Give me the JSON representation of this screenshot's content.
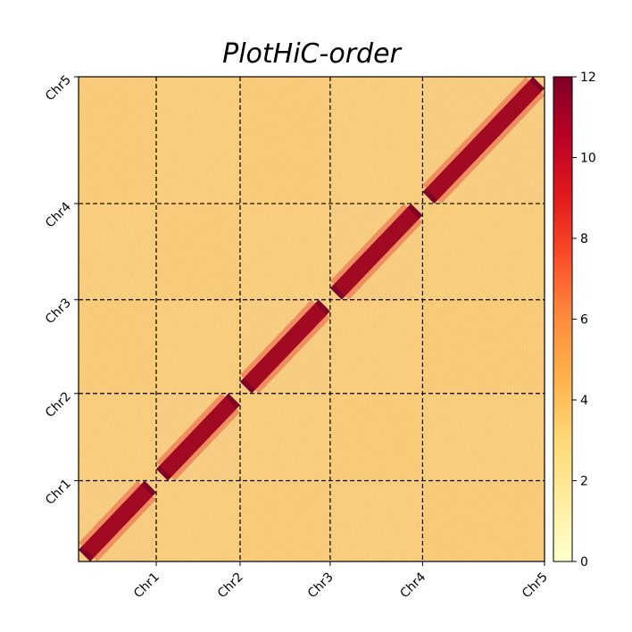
{
  "chart_data": {
    "type": "heatmap",
    "title": "PlotHiC-order",
    "xlabel": "",
    "ylabel": "",
    "chromosomes": [
      "Chr1",
      "Chr2",
      "Chr3",
      "Chr4",
      "Chr5"
    ],
    "boundaries": [
      1.0,
      2.08,
      3.24,
      4.43,
      6.0
    ],
    "x_tick_labels": [
      "Chr1",
      "Chr2",
      "Chr3",
      "Chr4",
      "Chr5"
    ],
    "y_tick_labels": [
      "Chr1",
      "Chr2",
      "Chr3",
      "Chr4",
      "Chr5"
    ],
    "colorbar": {
      "min": 0,
      "max": 12,
      "ticks": [
        0,
        2,
        4,
        6,
        8,
        10,
        12
      ],
      "colormap": [
        "#ffffcc",
        "#ffeda0",
        "#fed976",
        "#feb24c",
        "#fd8d3c",
        "#fc4e2a",
        "#e31a1c",
        "#bd0026",
        "#800026"
      ]
    },
    "diagonal_value": 12,
    "background_value": 3,
    "boundary_line_style": "dashed",
    "boundary_line_color": "#000000"
  }
}
